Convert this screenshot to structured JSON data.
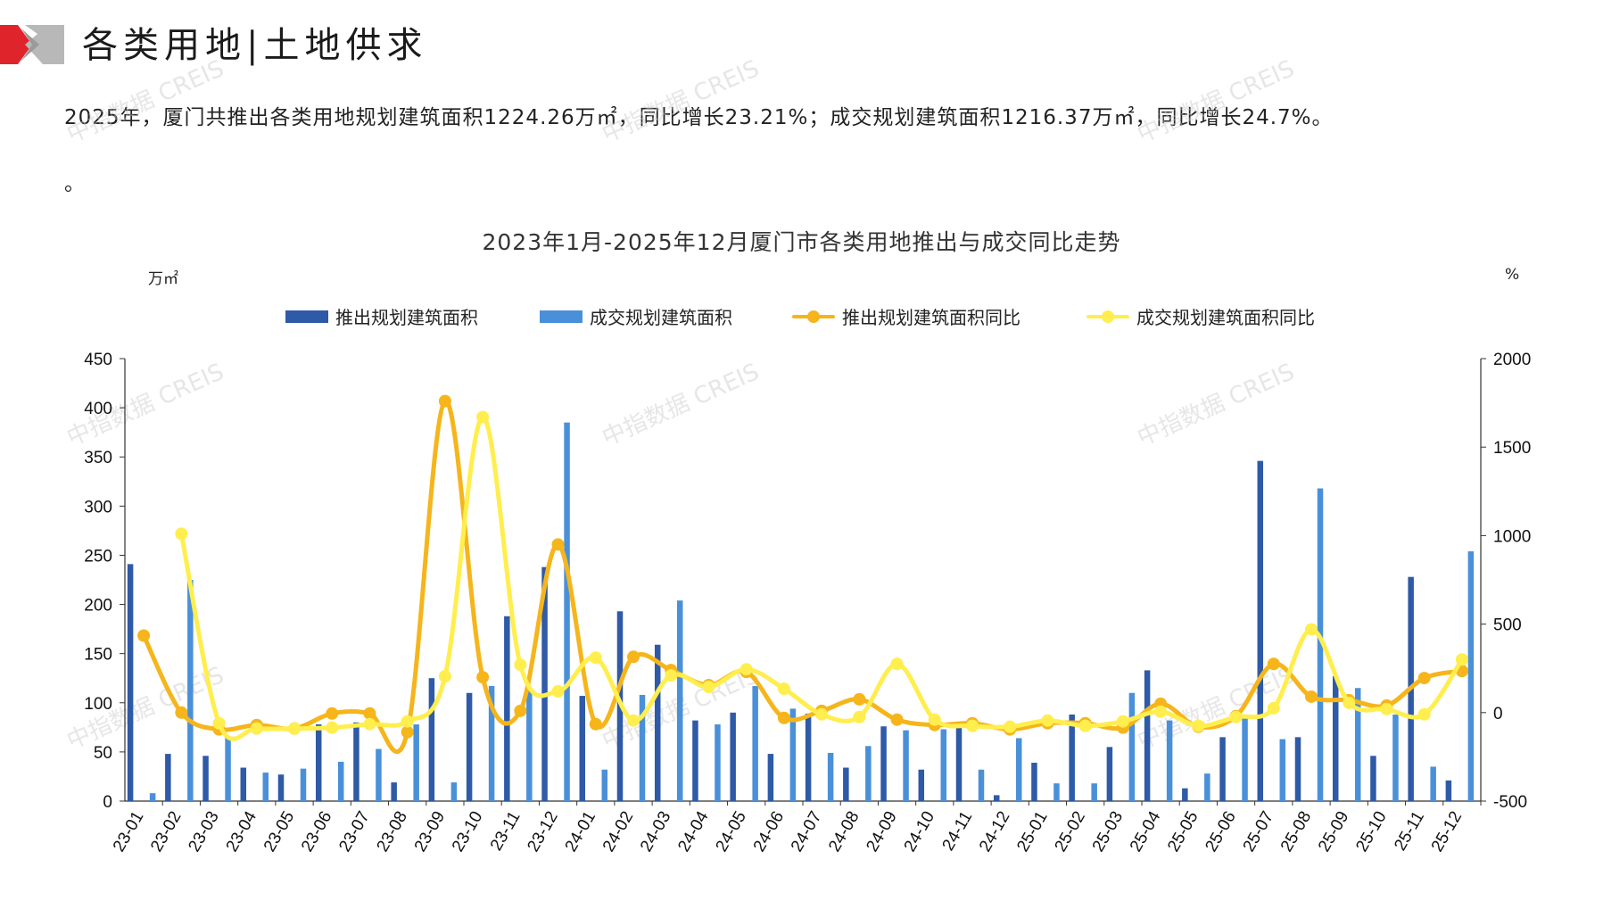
{
  "header": {
    "title": "各类用地|土地供求",
    "summary": "2025年，厦门共推出各类用地规划建筑面积1224.26万㎡，同比增长23.21%；成交规划建筑面积1216.37万㎡，同比增长24.7%。",
    "summary_tail": "。"
  },
  "watermark": "中指数据 CREIS",
  "colors": {
    "launch_bar": "#2E5AA7",
    "deal_bar": "#4A90D9",
    "launch_yoy_line": "#F5B51B",
    "deal_yoy_line": "#FFEE4D",
    "logo_red": "#E0242B",
    "logo_gray": "#B5B5B5"
  },
  "chart_data": {
    "type": "bar+line",
    "title": "2023年1月-2025年12月厦门市各类用地推出与成交同比走势",
    "y_left_label": "万㎡",
    "y_right_label": "%",
    "ylim_left": [
      0,
      450
    ],
    "yticks_left": [
      0,
      50,
      100,
      150,
      200,
      250,
      300,
      350,
      400,
      450
    ],
    "ylim_right": [
      -500,
      2000
    ],
    "yticks_right": [
      -500,
      0,
      500,
      1000,
      1500,
      2000
    ],
    "legend_position": "top-center",
    "grid": false,
    "categories": [
      "23-01",
      "23-02",
      "23-03",
      "23-04",
      "23-05",
      "23-06",
      "23-07",
      "23-08",
      "23-09",
      "23-10",
      "23-11",
      "23-12",
      "24-01",
      "24-02",
      "24-03",
      "24-04",
      "24-05",
      "24-06",
      "24-07",
      "24-08",
      "24-09",
      "24-10",
      "24-11",
      "24-12",
      "25-01",
      "25-02",
      "25-03",
      "25-04",
      "25-05",
      "25-06",
      "25-07",
      "25-08",
      "25-09",
      "25-10",
      "25-11",
      "25-12"
    ],
    "series": [
      {
        "name": "推出规划建筑面积",
        "type": "bar",
        "axis": "left",
        "values": [
          241,
          48,
          46,
          34,
          27,
          78,
          80,
          19,
          125,
          110,
          188,
          238,
          107,
          193,
          159,
          82,
          90,
          48,
          89,
          34,
          76,
          32,
          77,
          6,
          39,
          88,
          55,
          133,
          13,
          65,
          346,
          65,
          127,
          46,
          228,
          21
        ]
      },
      {
        "name": "成交规划建筑面积",
        "type": "bar",
        "axis": "left",
        "values": [
          8,
          225,
          65,
          29,
          33,
          40,
          53,
          78,
          19,
          117,
          115,
          385,
          32,
          108,
          204,
          78,
          117,
          94,
          49,
          56,
          72,
          73,
          32,
          64,
          18,
          18,
          110,
          82,
          28,
          88,
          63,
          318,
          115,
          88,
          35,
          254
        ]
      },
      {
        "name": "推出规划建筑面积同比",
        "type": "line",
        "axis": "right",
        "values": [
          435,
          0,
          -95,
          -70,
          -90,
          -5,
          -5,
          -110,
          1760,
          200,
          10,
          950,
          -65,
          315,
          240,
          155,
          230,
          -30,
          10,
          75,
          -40,
          -70,
          -60,
          -95,
          -60,
          -60,
          -85,
          50,
          -80,
          -20,
          275,
          90,
          70,
          40,
          195,
          235
        ]
      },
      {
        "name": "成交规划建筑面积同比",
        "type": "line",
        "axis": "right",
        "values": [
          null,
          1010,
          -60,
          -90,
          -90,
          -85,
          -65,
          -50,
          205,
          1670,
          270,
          120,
          310,
          -45,
          210,
          145,
          245,
          135,
          -10,
          -25,
          275,
          -40,
          -75,
          -80,
          -45,
          -75,
          -50,
          5,
          -75,
          -25,
          25,
          470,
          55,
          20,
          -10,
          300
        ]
      }
    ]
  }
}
